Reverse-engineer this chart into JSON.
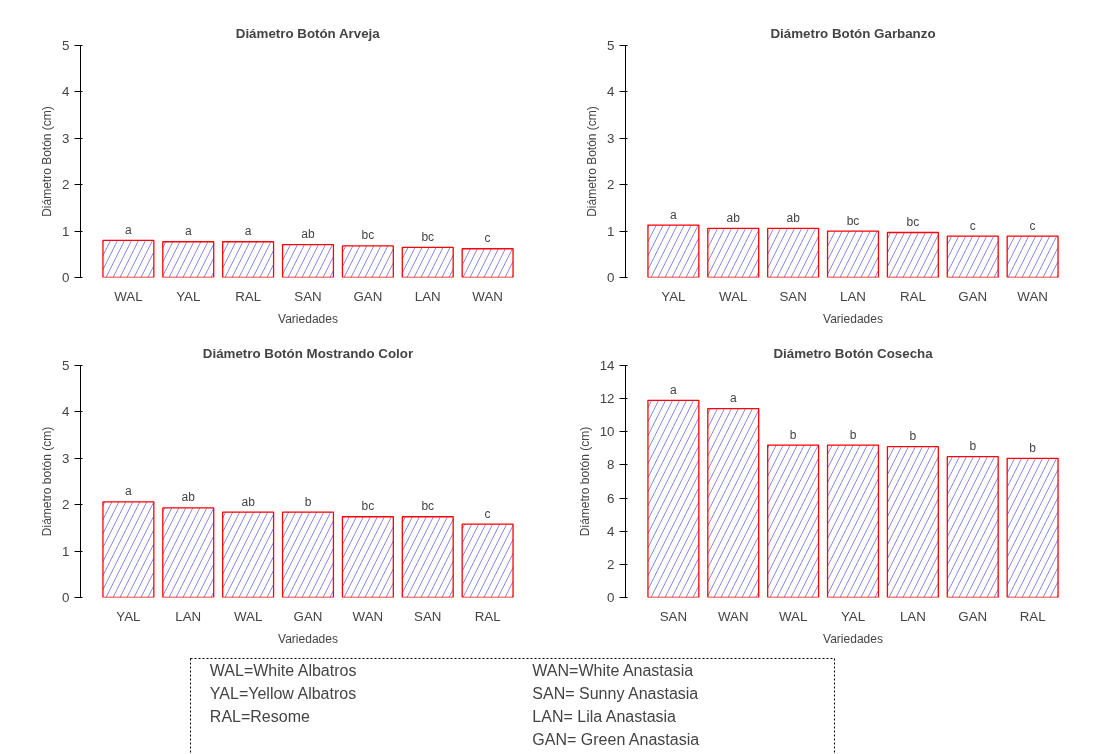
{
  "chart_data": [
    {
      "type": "bar",
      "title": "Diámetro Botón Arveja",
      "xlabel": "Variedades",
      "ylabel": "Diámetro Botón (cm)",
      "categories": [
        "WAL",
        "YAL",
        "RAL",
        "SAN",
        "GAN",
        "LAN",
        "WAN"
      ],
      "values": [
        0.8,
        0.77,
        0.77,
        0.71,
        0.68,
        0.65,
        0.62
      ],
      "color": "#ff0000",
      "ylim": [
        0,
        5
      ],
      "yticks": [
        0,
        1,
        2,
        3,
        4,
        5
      ],
      "grid": false,
      "annotations": [
        {
          "text": "a",
          "x": "WAL",
          "y": 0.8
        },
        {
          "text": "a",
          "x": "YAL",
          "y": 0.77
        },
        {
          "text": "a",
          "x": "RAL",
          "y": 0.77
        },
        {
          "text": "ab",
          "x": "SAN",
          "y": 0.71
        },
        {
          "text": "bc",
          "x": "GAN",
          "y": 0.68
        },
        {
          "text": "bc",
          "x": "LAN",
          "y": 0.65
        },
        {
          "text": "c",
          "x": "WAN",
          "y": 0.62
        }
      ]
    },
    {
      "type": "bar",
      "title": "Diámetro Botón Garbanzo",
      "xlabel": "Variedades",
      "ylabel": "Diámetro Botón (cm)",
      "categories": [
        "YAL",
        "WAL",
        "SAN",
        "LAN",
        "RAL",
        "GAN",
        "WAN"
      ],
      "values": [
        1.13,
        1.06,
        1.06,
        1.0,
        0.97,
        0.89,
        0.89
      ],
      "color": "#ff0000",
      "ylim": [
        0,
        5
      ],
      "yticks": [
        0,
        1,
        2,
        3,
        4,
        5
      ],
      "grid": false,
      "annotations": [
        {
          "text": "a",
          "x": "YAL",
          "y": 1.13
        },
        {
          "text": "ab",
          "x": "WAL",
          "y": 1.06
        },
        {
          "text": "ab",
          "x": "SAN",
          "y": 1.06
        },
        {
          "text": "bc",
          "x": "LAN",
          "y": 1.0
        },
        {
          "text": "bc",
          "x": "RAL",
          "y": 0.97
        },
        {
          "text": "c",
          "x": "GAN",
          "y": 0.89
        },
        {
          "text": "c",
          "x": "WAN",
          "y": 0.89
        }
      ]
    },
    {
      "type": "bar",
      "title": "Diámetro Botón Mostrando Color",
      "xlabel": "Variedades",
      "ylabel": "Diámetro botón (cm)",
      "categories": [
        "YAL",
        "LAN",
        "WAL",
        "GAN",
        "WAN",
        "SAN",
        "RAL"
      ],
      "values": [
        2.06,
        1.93,
        1.84,
        1.84,
        1.74,
        1.74,
        1.58
      ],
      "color": "#ff0000",
      "ylim": [
        0,
        5
      ],
      "yticks": [
        0,
        1,
        2,
        3,
        4,
        5
      ],
      "grid": false,
      "annotations": [
        {
          "text": "a",
          "x": "YAL",
          "y": 2.06
        },
        {
          "text": "ab",
          "x": "LAN",
          "y": 1.93
        },
        {
          "text": "ab",
          "x": "WAL",
          "y": 1.84
        },
        {
          "text": "b",
          "x": "GAN",
          "y": 1.84
        },
        {
          "text": "bc",
          "x": "WAN",
          "y": 1.74
        },
        {
          "text": "bc",
          "x": "SAN",
          "y": 1.74
        },
        {
          "text": "c",
          "x": "RAL",
          "y": 1.58
        }
      ]
    },
    {
      "type": "bar",
      "title": "Diámetro Botón Cosecha",
      "xlabel": "Variedades",
      "ylabel": "Diámetro botón (cm)",
      "categories": [
        "SAN",
        "WAN",
        "WAL",
        "YAL",
        "LAN",
        "GAN",
        "RAL"
      ],
      "values": [
        11.9,
        11.4,
        9.2,
        9.2,
        9.1,
        8.5,
        8.4
      ],
      "color": "#ff0000",
      "ylim": [
        0,
        14
      ],
      "yticks": [
        0,
        2,
        4,
        6,
        8,
        10,
        12,
        14
      ],
      "grid": false,
      "annotations": [
        {
          "text": "a",
          "x": "SAN",
          "y": 11.9
        },
        {
          "text": "a",
          "x": "WAN",
          "y": 11.4
        },
        {
          "text": "b",
          "x": "WAL",
          "y": 9.2
        },
        {
          "text": "b",
          "x": "YAL",
          "y": 9.2
        },
        {
          "text": "b",
          "x": "LAN",
          "y": 9.1
        },
        {
          "text": "b",
          "x": "GAN",
          "y": 8.5
        },
        {
          "text": "b",
          "x": "RAL",
          "y": 8.4
        }
      ]
    },
    {
      "type": "other",
      "annotations": [
        "WAL=White Albatros",
        "YAL=Yellow  Albatros",
        "RAL=Resome",
        "WAN=White Anastasia",
        "SAN= Sunny Anastasia",
        "LAN= Lila Anastasia",
        "GAN= Green Anastasia"
      ]
    }
  ]
}
